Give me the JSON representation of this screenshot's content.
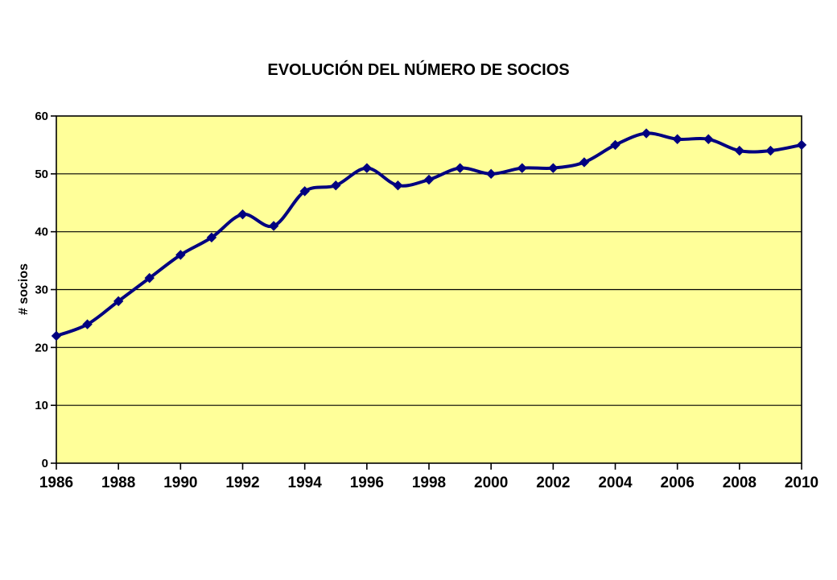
{
  "chart_data": {
    "type": "line",
    "title": "EVOLUCIÓN DEL NÚMERO DE SOCIOS",
    "ylabel": "# socios",
    "xlabel": "",
    "x": [
      1986,
      1987,
      1988,
      1989,
      1990,
      1991,
      1992,
      1993,
      1994,
      1995,
      1996,
      1997,
      1998,
      1999,
      2000,
      2001,
      2002,
      2003,
      2004,
      2005,
      2006,
      2007,
      2008,
      2009,
      2010
    ],
    "series": [
      {
        "name": "# socios",
        "values": [
          22,
          24,
          28,
          32,
          36,
          39,
          43,
          41,
          47,
          48,
          51,
          48,
          49,
          51,
          50,
          51,
          51,
          52,
          55,
          57,
          56,
          56,
          54,
          54,
          55
        ]
      }
    ],
    "ylim": [
      0,
      60
    ],
    "y_ticks": [
      0,
      10,
      20,
      30,
      40,
      50,
      60
    ],
    "x_ticks": [
      1986,
      1988,
      1990,
      1992,
      1994,
      1996,
      1998,
      2000,
      2002,
      2004,
      2006,
      2008,
      2010
    ],
    "grid": "horizontal",
    "legend": "none",
    "marker": "diamond",
    "line_style": "smooth",
    "colors": {
      "line": "#000080",
      "marker": "#000080",
      "plot_background": "#FFFF99",
      "grid": "#000000",
      "axis": "#000000",
      "text": "#000000",
      "page_background": "#FFFFFF"
    }
  }
}
